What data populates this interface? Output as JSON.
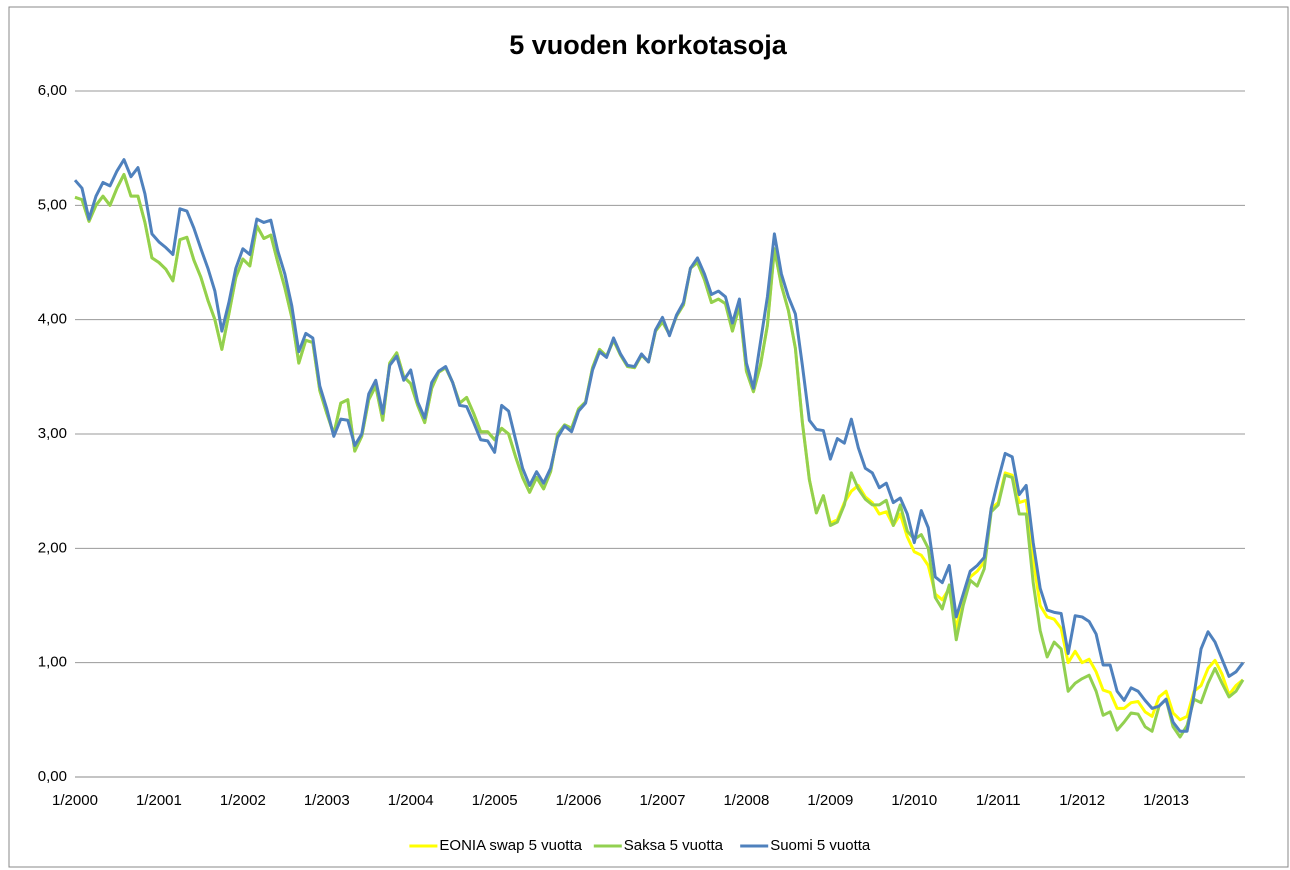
{
  "chart_data": {
    "type": "line",
    "title": "5 vuoden korkotasoja",
    "categories": [
      "1/2000",
      null,
      null,
      null,
      null,
      null,
      null,
      null,
      null,
      null,
      null,
      null,
      "1/2001",
      null,
      null,
      null,
      null,
      null,
      null,
      null,
      null,
      null,
      null,
      null,
      "1/2002",
      null,
      null,
      null,
      null,
      null,
      null,
      null,
      null,
      null,
      null,
      null,
      "1/2003",
      null,
      null,
      null,
      null,
      null,
      null,
      null,
      null,
      null,
      null,
      null,
      "1/2004",
      null,
      null,
      null,
      null,
      null,
      null,
      null,
      null,
      null,
      null,
      null,
      "1/2005",
      null,
      null,
      null,
      null,
      null,
      null,
      null,
      null,
      null,
      null,
      null,
      "1/2006",
      null,
      null,
      null,
      null,
      null,
      null,
      null,
      null,
      null,
      null,
      null,
      "1/2007",
      null,
      null,
      null,
      null,
      null,
      null,
      null,
      null,
      null,
      null,
      null,
      "1/2008",
      null,
      null,
      null,
      null,
      null,
      null,
      null,
      null,
      null,
      null,
      null,
      "1/2009",
      null,
      null,
      null,
      null,
      null,
      null,
      null,
      null,
      null,
      null,
      null,
      "1/2010",
      null,
      null,
      null,
      null,
      null,
      null,
      null,
      null,
      null,
      null,
      null,
      "1/2011",
      null,
      null,
      null,
      null,
      null,
      null,
      null,
      null,
      null,
      null,
      null,
      "1/2012",
      null,
      null,
      null,
      null,
      null,
      null,
      null,
      null,
      null,
      null,
      null,
      "1/2013",
      null,
      null,
      null,
      null,
      null,
      null,
      null,
      null,
      null,
      null,
      null
    ],
    "series": [
      {
        "name": "EONIA swap 5 vuotta",
        "color": "#ffff00",
        "values": [
          5.07,
          5.05,
          4.86,
          5.0,
          5.08,
          5.0,
          5.15,
          5.27,
          5.08,
          5.08,
          4.85,
          4.54,
          4.5,
          4.44,
          4.34,
          4.7,
          4.72,
          4.52,
          4.37,
          4.17,
          4.0,
          3.74,
          4.05,
          4.37,
          4.53,
          4.47,
          4.82,
          4.71,
          4.74,
          4.5,
          4.28,
          4.02,
          3.62,
          3.82,
          3.8,
          3.38,
          3.18,
          3.0,
          3.27,
          3.3,
          2.85,
          2.98,
          3.3,
          3.42,
          3.12,
          3.62,
          3.71,
          3.5,
          3.44,
          3.25,
          3.1,
          3.4,
          3.54,
          3.58,
          3.45,
          3.27,
          3.32,
          3.18,
          3.02,
          3.02,
          2.95,
          3.05,
          3.0,
          2.8,
          2.62,
          2.49,
          2.62,
          2.52,
          2.67,
          3.0,
          3.08,
          3.05,
          3.22,
          3.28,
          3.58,
          3.74,
          3.68,
          3.82,
          3.69,
          3.59,
          3.58,
          3.69,
          3.63,
          3.9,
          3.98,
          3.87,
          4.03,
          4.13,
          4.45,
          4.5,
          4.35,
          4.15,
          4.18,
          4.14,
          3.9,
          4.12,
          3.55,
          3.37,
          3.6,
          3.95,
          4.62,
          4.3,
          4.08,
          3.75,
          3.1,
          2.6,
          2.31,
          2.46,
          2.22,
          2.25,
          2.4,
          2.5,
          2.55,
          2.45,
          2.4,
          2.3,
          2.32,
          2.2,
          2.3,
          2.1,
          1.97,
          1.94,
          1.85,
          1.6,
          1.55,
          1.65,
          1.3,
          1.55,
          1.75,
          1.8,
          1.88,
          2.35,
          2.4,
          2.66,
          2.64,
          2.4,
          2.42,
          1.9,
          1.5,
          1.4,
          1.38,
          1.3,
          1.0,
          1.1,
          1.0,
          1.03,
          0.92,
          0.76,
          0.74,
          0.6,
          0.6,
          0.65,
          0.66,
          0.57,
          0.53,
          0.7,
          0.75,
          0.56,
          0.5,
          0.53,
          0.75,
          0.8,
          0.95,
          1.02,
          0.9,
          0.72,
          0.8,
          0.85
        ]
      },
      {
        "name": "Saksa 5 vuotta",
        "color": "#92d050",
        "values": [
          5.07,
          5.05,
          4.86,
          5.0,
          5.08,
          5.0,
          5.15,
          5.27,
          5.08,
          5.08,
          4.85,
          4.54,
          4.5,
          4.44,
          4.34,
          4.7,
          4.72,
          4.52,
          4.37,
          4.17,
          4.0,
          3.74,
          4.05,
          4.37,
          4.53,
          4.47,
          4.82,
          4.71,
          4.74,
          4.5,
          4.28,
          4.02,
          3.62,
          3.82,
          3.8,
          3.38,
          3.18,
          3.0,
          3.27,
          3.3,
          2.85,
          2.98,
          3.3,
          3.42,
          3.12,
          3.62,
          3.71,
          3.5,
          3.44,
          3.25,
          3.1,
          3.4,
          3.54,
          3.58,
          3.45,
          3.27,
          3.32,
          3.18,
          3.02,
          3.02,
          2.95,
          3.05,
          3.0,
          2.8,
          2.62,
          2.49,
          2.62,
          2.52,
          2.67,
          3.0,
          3.08,
          3.05,
          3.22,
          3.28,
          3.58,
          3.74,
          3.68,
          3.82,
          3.69,
          3.59,
          3.58,
          3.69,
          3.63,
          3.9,
          3.98,
          3.87,
          4.03,
          4.13,
          4.45,
          4.5,
          4.35,
          4.15,
          4.18,
          4.14,
          3.9,
          4.12,
          3.55,
          3.37,
          3.6,
          3.95,
          4.62,
          4.3,
          4.08,
          3.75,
          3.1,
          2.6,
          2.31,
          2.46,
          2.2,
          2.23,
          2.38,
          2.66,
          2.52,
          2.43,
          2.38,
          2.38,
          2.42,
          2.2,
          2.38,
          2.15,
          2.08,
          2.12,
          2.0,
          1.57,
          1.47,
          1.68,
          1.2,
          1.5,
          1.72,
          1.67,
          1.82,
          2.32,
          2.38,
          2.64,
          2.62,
          2.3,
          2.3,
          1.7,
          1.28,
          1.05,
          1.18,
          1.12,
          0.75,
          0.82,
          0.86,
          0.89,
          0.75,
          0.54,
          0.57,
          0.41,
          0.48,
          0.56,
          0.55,
          0.44,
          0.4,
          0.62,
          0.68,
          0.44,
          0.35,
          0.45,
          0.68,
          0.65,
          0.82,
          0.95,
          0.82,
          0.7,
          0.75,
          0.85
        ]
      },
      {
        "name": "Suomi 5 vuotta",
        "color": "#4f81bd",
        "values": [
          5.22,
          5.15,
          4.88,
          5.08,
          5.2,
          5.17,
          5.3,
          5.4,
          5.25,
          5.33,
          5.1,
          4.75,
          4.68,
          4.63,
          4.57,
          4.97,
          4.95,
          4.8,
          4.62,
          4.45,
          4.25,
          3.9,
          4.15,
          4.45,
          4.62,
          4.57,
          4.88,
          4.85,
          4.87,
          4.6,
          4.4,
          4.12,
          3.72,
          3.88,
          3.84,
          3.42,
          3.22,
          2.98,
          3.13,
          3.12,
          2.9,
          3.0,
          3.35,
          3.47,
          3.18,
          3.6,
          3.68,
          3.47,
          3.56,
          3.28,
          3.14,
          3.45,
          3.55,
          3.59,
          3.45,
          3.25,
          3.24,
          3.1,
          2.95,
          2.94,
          2.84,
          3.25,
          3.2,
          2.95,
          2.7,
          2.55,
          2.67,
          2.57,
          2.7,
          2.97,
          3.07,
          3.02,
          3.2,
          3.27,
          3.56,
          3.72,
          3.67,
          3.84,
          3.7,
          3.6,
          3.59,
          3.7,
          3.63,
          3.91,
          4.02,
          3.86,
          4.04,
          4.15,
          4.45,
          4.54,
          4.4,
          4.22,
          4.25,
          4.2,
          3.97,
          4.18,
          3.62,
          3.4,
          3.8,
          4.2,
          4.75,
          4.4,
          4.2,
          4.05,
          3.6,
          3.12,
          3.04,
          3.03,
          2.78,
          2.96,
          2.92,
          3.13,
          2.88,
          2.7,
          2.66,
          2.53,
          2.57,
          2.4,
          2.44,
          2.3,
          2.05,
          2.33,
          2.18,
          1.75,
          1.7,
          1.85,
          1.4,
          1.6,
          1.8,
          1.85,
          1.92,
          2.35,
          2.6,
          2.83,
          2.8,
          2.47,
          2.55,
          2.05,
          1.65,
          1.46,
          1.44,
          1.43,
          1.08,
          1.41,
          1.4,
          1.36,
          1.25,
          0.98,
          0.98,
          0.75,
          0.67,
          0.78,
          0.75,
          0.67,
          0.6,
          0.62,
          0.68,
          0.48,
          0.4,
          0.4,
          0.72,
          1.12,
          1.27,
          1.18,
          1.03,
          0.88,
          0.92,
          1.0
        ]
      }
    ],
    "ylim": [
      0,
      6
    ],
    "yticks": [
      {
        "value": 0,
        "label": "0,00"
      },
      {
        "value": 1,
        "label": "1,00"
      },
      {
        "value": 2,
        "label": "2,00"
      },
      {
        "value": 3,
        "label": "3,00"
      },
      {
        "value": 4,
        "label": "4,00"
      },
      {
        "value": 5,
        "label": "5,00"
      },
      {
        "value": 6,
        "label": "6,00"
      }
    ],
    "grid": true,
    "legend": "bottom"
  }
}
